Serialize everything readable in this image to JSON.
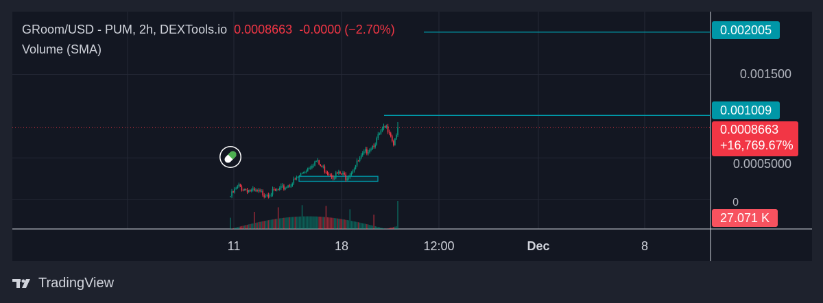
{
  "header": {
    "symbol": "GRoom/USD - PUM, 2h, DEXTools.io",
    "last_price": "0.0008663",
    "change": "-0.0000",
    "change_pct": "(−2.70%)",
    "volume_label": "Volume (SMA)"
  },
  "price_axis": {
    "labels": [
      "0.001500",
      "0.0005000",
      "0"
    ],
    "badge_high": "0.002005",
    "badge_mid": "0.001009",
    "badge_current_price": "0.0008663",
    "badge_current_change": "+16,769.67%",
    "badge_volume": "27.071 K"
  },
  "time_axis": {
    "labels": [
      {
        "text": "11",
        "bold": false
      },
      {
        "text": "18",
        "bold": false
      },
      {
        "text": "12:00",
        "bold": false
      },
      {
        "text": "Dec",
        "bold": true
      },
      {
        "text": "8",
        "bold": false
      }
    ]
  },
  "footer": {
    "brand": "TradingView"
  },
  "colors": {
    "background": "#1e222d",
    "pane": "#131722",
    "up": "#089981",
    "down": "#f23645",
    "accent": "#0097a7",
    "text": "#d1d4dc",
    "axis_text": "#b2b5be"
  },
  "icons": {
    "marker": "pill-icon",
    "brand": "tradingview-logo-icon"
  },
  "chart_data": {
    "type": "candlestick",
    "title": "GRoom/USD - PUM, 2h, DEXTools.io",
    "y_axis": {
      "ticks": [
        0,
        0.0005,
        0.0015
      ],
      "range": [
        -0.00035,
        0.00225
      ]
    },
    "x_axis": {
      "ticks": [
        "11",
        "18",
        "12:00",
        "Dec",
        "8"
      ]
    },
    "horizontal_lines": [
      0.002005,
      0.001009
    ],
    "current_price": 0.0008663,
    "box_range": {
      "low": 0.00022,
      "high": 0.00028
    },
    "price_path": [
      4e-05,
      0.00011,
      0.00016,
      0.00013,
      0.00012,
      0.0001,
      9e-05,
      8e-05,
      7e-05,
      8e-05,
      9e-05,
      0.00011,
      0.00013,
      0.00016,
      0.00019,
      0.00023,
      0.00028,
      0.00033,
      0.00038,
      0.00043,
      0.00046,
      0.0004,
      0.00036,
      0.00032,
      0.00029,
      0.00031,
      0.0003,
      0.00027,
      0.00033,
      0.0004,
      0.00047,
      0.00054,
      0.0006,
      0.00064,
      0.00071,
      0.0008,
      0.00086,
      0.00084,
      0.00067,
      0.00086
    ],
    "volume_max": 27071,
    "volume_latest": 27071
  }
}
